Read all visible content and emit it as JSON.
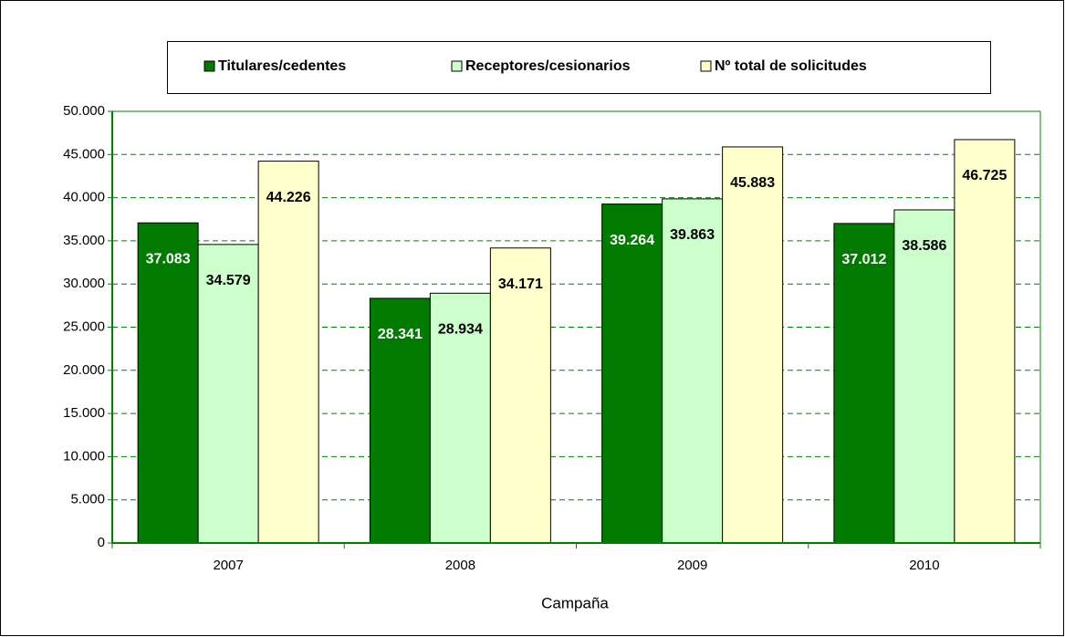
{
  "chart_data": {
    "type": "bar",
    "categories": [
      "2007",
      "2008",
      "2009",
      "2010"
    ],
    "series": [
      {
        "name": "Titulares/cedentes",
        "color": "#007a00",
        "label_color": "#ffffff",
        "values": [
          37083,
          28341,
          39264,
          37012
        ],
        "value_labels": [
          "37.083",
          "28.341",
          "39.264",
          "37.012"
        ]
      },
      {
        "name": "Receptores/cesionarios",
        "color": "#ccffcc",
        "label_color": "#000000",
        "values": [
          34579,
          28934,
          39863,
          38586
        ],
        "value_labels": [
          "34.579",
          "28.934",
          "39.863",
          "38.586"
        ]
      },
      {
        "name": "Nº total de solicitudes",
        "color": "#ffffcc",
        "label_color": "#000000",
        "values": [
          44226,
          34171,
          45883,
          46725
        ],
        "value_labels": [
          "44.226",
          "34.171",
          "45.883",
          "46.725"
        ]
      }
    ],
    "xlabel": "Campaña",
    "ylim": [
      0,
      50000
    ],
    "yticks": [
      0,
      {
        "value": 5000,
        "label": "5.000"
      },
      {
        "value": 10000,
        "label": "10.000"
      },
      {
        "value": 15000,
        "label": "15.000"
      },
      {
        "value": 20000,
        "label": "20.000"
      },
      {
        "value": 25000,
        "label": "25.000"
      },
      {
        "value": 30000,
        "label": "30.000"
      },
      {
        "value": 35000,
        "label": "35.000"
      },
      {
        "value": 40000,
        "label": "40.000"
      },
      {
        "value": 45000,
        "label": "45.000"
      },
      {
        "value": 50000,
        "label": "50.000"
      }
    ],
    "grid": true,
    "legend": "top"
  }
}
